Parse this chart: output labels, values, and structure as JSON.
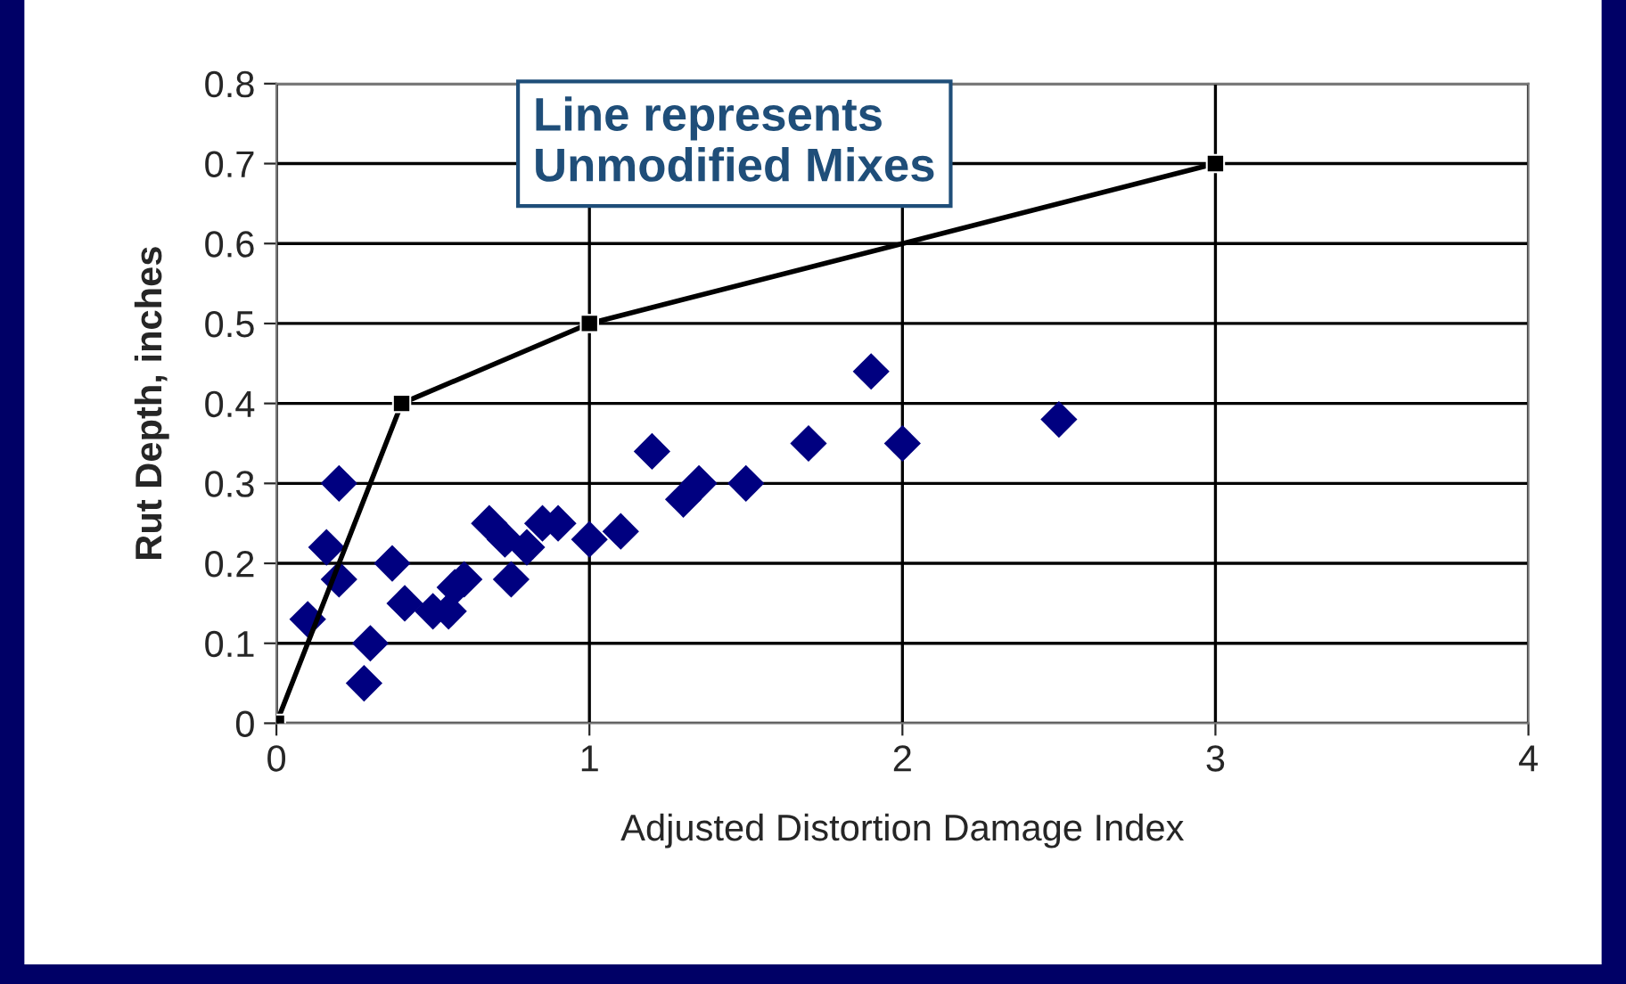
{
  "chart_data": {
    "type": "scatter",
    "xlabel": "Adjusted Distortion Damage Index",
    "ylabel": "Rut Depth, inches",
    "xlim": [
      0,
      4
    ],
    "xticks": [
      0,
      1,
      2,
      3,
      4
    ],
    "ylim": [
      0,
      0.8
    ],
    "yticks": [
      0,
      0.1,
      0.2,
      0.3,
      0.4,
      0.5,
      0.6,
      0.7,
      0.8
    ],
    "grid": true,
    "annotations": [
      "Line represents\nUnmodified Mixes"
    ],
    "series": [
      {
        "color": "#000080",
        "marker": "diamond",
        "x": [
          0.1,
          0.16,
          0.2,
          0.2,
          0.28,
          0.3,
          0.37,
          0.41,
          0.5,
          0.55,
          0.57,
          0.6,
          0.68,
          0.73,
          0.75,
          0.8,
          0.85,
          0.9,
          1.0,
          1.1,
          1.2,
          1.3,
          1.35,
          1.5,
          1.7,
          1.9,
          2.0,
          2.5
        ],
        "values": [
          0.13,
          0.22,
          0.3,
          0.18,
          0.05,
          0.1,
          0.2,
          0.15,
          0.14,
          0.14,
          0.17,
          0.18,
          0.25,
          0.23,
          0.18,
          0.22,
          0.25,
          0.25,
          0.23,
          0.24,
          0.34,
          0.28,
          0.3,
          0.3,
          0.35,
          0.44,
          0.35,
          0.38
        ]
      },
      {
        "type": "line",
        "color": "#000000",
        "marker": "square",
        "x": [
          0,
          0.4,
          1,
          3
        ],
        "values": [
          0,
          0.4,
          0.5,
          0.7
        ]
      }
    ]
  }
}
